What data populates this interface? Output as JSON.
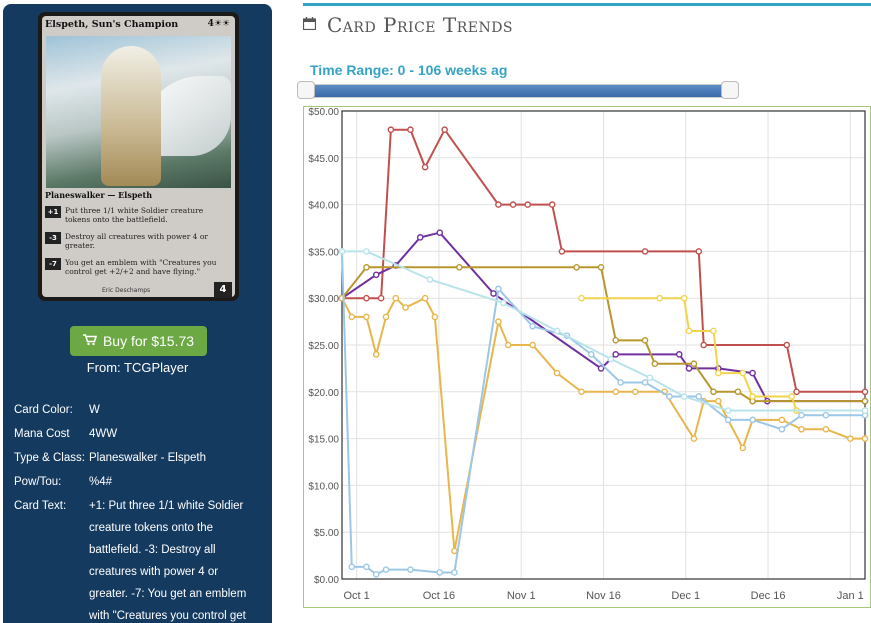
{
  "card": {
    "name": "Elspeth, Sun's Champion",
    "mana": "4☀☀",
    "type_line": "Planeswalker — Elspeth",
    "abilities": [
      {
        "loyalty": "+1",
        "text": "Put three 1/1 white Soldier creature tokens onto the battlefield."
      },
      {
        "loyalty": "-3",
        "text": "Destroy all creatures with power 4 or greater."
      },
      {
        "loyalty": "-7",
        "text": "You get an emblem with \"Creatures you control get +2/+2 and have flying.\""
      }
    ],
    "artist": "Eric Deschamps",
    "loyalty": "4"
  },
  "buy": {
    "label": "Buy for $15.73",
    "icon": "cart-icon",
    "color": "#6ca944"
  },
  "source": "From: TCGPlayer",
  "info": [
    {
      "label": "Card Color:",
      "value": "W"
    },
    {
      "label": "Mana Cost",
      "value": "4WW"
    },
    {
      "label": "Type & Class:",
      "value": "Planeswalker - Elspeth"
    },
    {
      "label": "Pow/Tou:",
      "value": "%4#"
    },
    {
      "label": "Card Text:",
      "value": "+1: Put three 1/1 white Soldier creature tokens onto the battlefield. -3: Destroy all creatures with power 4 or greater. -7: You get an emblem with \"Creatures you control get"
    }
  ],
  "title": "Card Price Trends",
  "range_label": "Time Range: 0 - 106 weeks ag",
  "colors": {
    "accent": "#35a3c4",
    "sidebar": "#153a60"
  },
  "chart_data": {
    "type": "line",
    "title": "",
    "xlabel": "",
    "ylabel": "",
    "x_ticks": [
      "Oct 1",
      "Oct 16",
      "Nov 1",
      "Nov 16",
      "Dec 1",
      "Dec 16",
      "Jan 1"
    ],
    "y_ticks": [
      "$0.00",
      "$5.00",
      "$10.00",
      "$15.00",
      "$20.00",
      "$25.00",
      "$30.00",
      "$35.00",
      "$40.00",
      "$45.00",
      "$50.00"
    ],
    "xlim": [
      -4,
      103
    ],
    "ylim": [
      0,
      50
    ],
    "grid": true,
    "series": [
      {
        "color": "#c0504d",
        "points": [
          [
            -4,
            30
          ],
          [
            1,
            30
          ],
          [
            4,
            30
          ],
          [
            6,
            48
          ],
          [
            10,
            48
          ],
          [
            13,
            44
          ],
          [
            17,
            48
          ],
          [
            28,
            40
          ],
          [
            31,
            40
          ],
          [
            34,
            40
          ],
          [
            39,
            40
          ],
          [
            41,
            35
          ],
          [
            58,
            35
          ],
          [
            69,
            35
          ],
          [
            70,
            25
          ],
          [
            87,
            25
          ],
          [
            89,
            20
          ],
          [
            103,
            20
          ]
        ]
      },
      {
        "color": "#7030a0",
        "points": [
          [
            -4,
            30
          ],
          [
            3,
            32.5
          ],
          [
            7,
            33.5
          ],
          [
            12,
            36.5
          ],
          [
            16,
            37
          ],
          [
            27,
            30.5
          ],
          [
            49,
            22.5
          ],
          [
            52,
            24
          ],
          [
            65,
            24
          ],
          [
            67,
            22.5
          ],
          [
            73,
            22.5
          ],
          [
            80,
            22
          ],
          [
            83,
            19
          ],
          [
            103,
            19
          ]
        ]
      },
      {
        "color": "#b8962e",
        "points": [
          [
            -4,
            30
          ],
          [
            1,
            33.3
          ],
          [
            20,
            33.3
          ],
          [
            44,
            33.3
          ],
          [
            49,
            33.3
          ],
          [
            52,
            25.5
          ],
          [
            58,
            25.5
          ],
          [
            60,
            23
          ],
          [
            68,
            23
          ],
          [
            72,
            20
          ],
          [
            77,
            20
          ],
          [
            80,
            19
          ],
          [
            103,
            19
          ]
        ]
      },
      {
        "color": "#f1d44a",
        "points": [
          [
            45,
            30
          ],
          [
            61,
            30
          ],
          [
            66,
            30
          ],
          [
            67,
            26.5
          ],
          [
            72,
            26.5
          ],
          [
            73,
            22
          ],
          [
            78,
            22
          ],
          [
            80,
            19.5
          ],
          [
            88,
            19.5
          ],
          [
            89,
            18
          ],
          [
            103,
            18
          ]
        ]
      },
      {
        "color": "#e8b64c",
        "points": [
          [
            -4,
            30
          ],
          [
            -2,
            28
          ],
          [
            1,
            28
          ],
          [
            3,
            24
          ],
          [
            5,
            28
          ],
          [
            7,
            30
          ],
          [
            9,
            29
          ],
          [
            13,
            30
          ],
          [
            15,
            28
          ],
          [
            19,
            3
          ],
          [
            28,
            27.5
          ],
          [
            30,
            25
          ],
          [
            35,
            25
          ],
          [
            40,
            22
          ],
          [
            45,
            20
          ],
          [
            52,
            20
          ],
          [
            56,
            20
          ],
          [
            62,
            20
          ],
          [
            68,
            15
          ],
          [
            70,
            19
          ],
          [
            73,
            19
          ],
          [
            78,
            14
          ],
          [
            80,
            17
          ],
          [
            86,
            17
          ],
          [
            90,
            16
          ],
          [
            95,
            16
          ],
          [
            100,
            15
          ],
          [
            103,
            15
          ]
        ]
      },
      {
        "color": "#9cc7e6",
        "points": [
          [
            -4,
            35
          ],
          [
            -2,
            1.3
          ],
          [
            1,
            1.3
          ],
          [
            3,
            0.5
          ],
          [
            5,
            1
          ],
          [
            10,
            1
          ],
          [
            16,
            0.7
          ],
          [
            19,
            0.7
          ],
          [
            28,
            31
          ],
          [
            35,
            27
          ],
          [
            42,
            26
          ],
          [
            47,
            24
          ],
          [
            53,
            21
          ],
          [
            58,
            21
          ],
          [
            63,
            19.5
          ],
          [
            69,
            19.5
          ],
          [
            75,
            17
          ],
          [
            80,
            17
          ],
          [
            86,
            16
          ],
          [
            90,
            17.5
          ],
          [
            95,
            17.5
          ],
          [
            103,
            17.5
          ]
        ]
      },
      {
        "color": "#b9e3ea",
        "points": [
          [
            -4,
            35
          ],
          [
            1,
            35
          ],
          [
            14,
            32
          ],
          [
            29,
            29.5
          ],
          [
            40,
            26.5
          ],
          [
            51,
            23.5
          ],
          [
            59,
            21.5
          ],
          [
            66,
            19.5
          ],
          [
            75,
            18
          ],
          [
            103,
            18
          ]
        ]
      }
    ]
  }
}
